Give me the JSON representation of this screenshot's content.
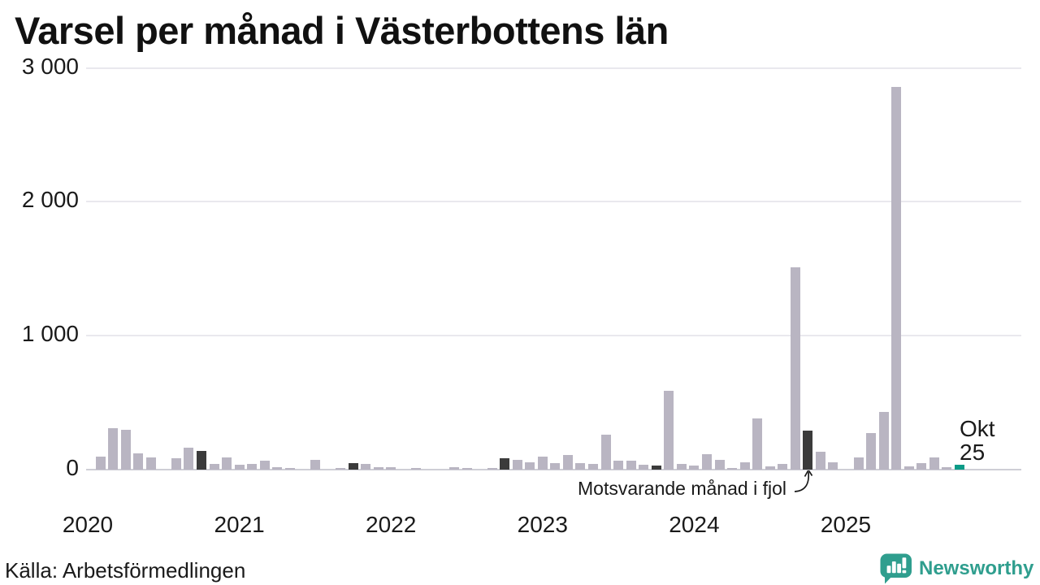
{
  "page": {
    "background": "#ffffff"
  },
  "chart_data": {
    "type": "bar",
    "title": "Varsel per månad i Västerbottens län",
    "xlabel": "",
    "ylabel": "",
    "ylim": [
      0,
      3000
    ],
    "grid": "horizontal",
    "legend": "none",
    "y_ticks": [
      {
        "value": 3000,
        "label": "3 000"
      },
      {
        "value": 2000,
        "label": "2 000"
      },
      {
        "value": 1000,
        "label": "1 000"
      },
      {
        "value": 0,
        "label": "0"
      }
    ],
    "x_year_labels": [
      "2020",
      "2021",
      "2022",
      "2023",
      "2024",
      "2025"
    ],
    "months": [
      "2020-01",
      "2020-02",
      "2020-03",
      "2020-04",
      "2020-05",
      "2020-06",
      "2020-07",
      "2020-08",
      "2020-09",
      "2020-10",
      "2020-11",
      "2020-12",
      "2021-01",
      "2021-02",
      "2021-03",
      "2021-04",
      "2021-05",
      "2021-06",
      "2021-07",
      "2021-08",
      "2021-09",
      "2021-10",
      "2021-11",
      "2021-12",
      "2022-01",
      "2022-02",
      "2022-03",
      "2022-04",
      "2022-05",
      "2022-06",
      "2022-07",
      "2022-08",
      "2022-09",
      "2022-10",
      "2022-11",
      "2022-12",
      "2023-01",
      "2023-02",
      "2023-03",
      "2023-04",
      "2023-05",
      "2023-06",
      "2023-07",
      "2023-08",
      "2023-09",
      "2023-10",
      "2023-11",
      "2023-12",
      "2024-01",
      "2024-02",
      "2024-03",
      "2024-04",
      "2024-05",
      "2024-06",
      "2024-07",
      "2024-08",
      "2024-09",
      "2024-10",
      "2024-11",
      "2024-12",
      "2025-01",
      "2025-02",
      "2025-03",
      "2025-04",
      "2025-05",
      "2025-06",
      "2025-07",
      "2025-08",
      "2025-09",
      "2025-10"
    ],
    "values": [
      0,
      95,
      310,
      295,
      120,
      90,
      0,
      85,
      165,
      140,
      45,
      90,
      35,
      45,
      65,
      18,
      10,
      0,
      75,
      0,
      14,
      48,
      40,
      20,
      16,
      0,
      12,
      0,
      0,
      16,
      10,
      0,
      15,
      85,
      72,
      53,
      96,
      47,
      112,
      51,
      41,
      263,
      67,
      69,
      35,
      31,
      588,
      45,
      31,
      114,
      71,
      12,
      53,
      380,
      25,
      41,
      1510,
      290,
      131,
      57,
      0,
      88,
      270,
      430,
      2860,
      23,
      51,
      88,
      21,
      35
    ],
    "highlighted_prev_year_indices": [
      9,
      21,
      33,
      45,
      57
    ],
    "current_index": 69,
    "annotation": {
      "text": "Motsvarande månad i fjol",
      "target_month": "2024-10"
    },
    "current_point_label": {
      "line1": "Okt",
      "line2": "25",
      "month": "2025-10"
    }
  },
  "colors": {
    "bar_normal": "#b9b5c2",
    "bar_prev_year_month": "#3b3b3b",
    "bar_current": "#0c9b87",
    "grid": "#e9e8ee",
    "axis_line": "#cfcfd6",
    "text": "#1a1a1a",
    "logo_teal": "#2f9e8e"
  },
  "footer": {
    "source_label": "Källa: Arbetsförmedlingen",
    "brand_name": "Newsworthy"
  }
}
